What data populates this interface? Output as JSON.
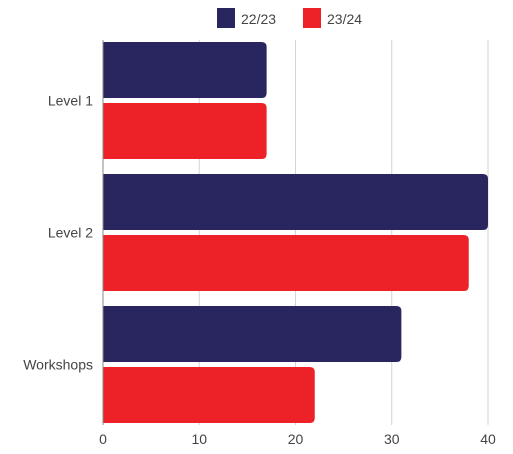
{
  "chart_data": {
    "type": "bar",
    "orientation": "horizontal",
    "categories": [
      "Level 1",
      "Level 2",
      "Workshops"
    ],
    "series": [
      {
        "name": "22/23",
        "color": "#29265f",
        "values": [
          17,
          40,
          31
        ]
      },
      {
        "name": "23/24",
        "color": "#ed2229",
        "values": [
          17,
          38,
          22
        ]
      }
    ],
    "xlim": [
      0,
      40
    ],
    "xticks": [
      "0",
      "10",
      "20",
      "30",
      "40"
    ],
    "grid": true,
    "legend_position": "top-center",
    "title": "",
    "xlabel": "",
    "ylabel": ""
  }
}
